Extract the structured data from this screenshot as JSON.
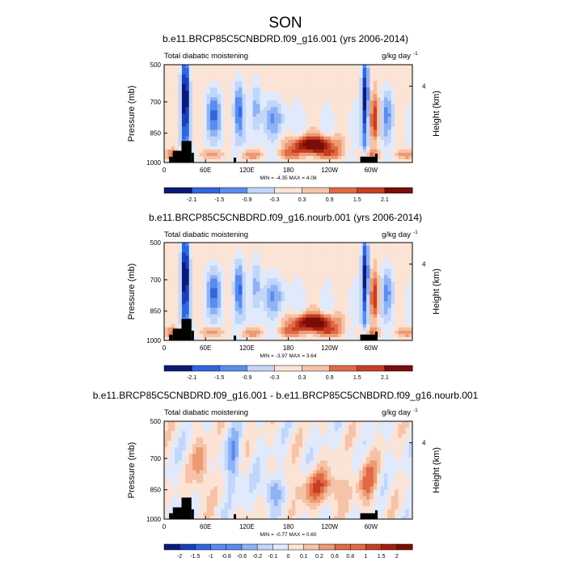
{
  "figure": {
    "season_title": "SON"
  },
  "chart_data": [
    {
      "type": "heatmap",
      "title": "b.e11.BRCP85C5CNBDRD.f09_g16.001 (yrs 2006-2014)",
      "left_label": "Total diabatic moistening",
      "units": "g/kg day",
      "units_exp": "-1",
      "ylabel": "Pressure (mb)",
      "y2label": "Height (km)",
      "yticks": [
        "500",
        "700",
        "850",
        "1000"
      ],
      "y2ticks": [
        "4"
      ],
      "xticks": [
        "0",
        "60E",
        "120E",
        "180",
        "120W",
        "60W"
      ],
      "min_max": "MIN = -4.35  MAX =  4.08",
      "colorbar_levels": [
        "-2.1",
        "-1.5",
        "-0.9",
        "-0.3",
        "0.3",
        "0.9",
        "1.5",
        "2.1"
      ],
      "palette": "diverging",
      "amp": 1.0
    },
    {
      "type": "heatmap",
      "title": "b.e11.BRCP85C5CNBDRD.f09_g16.nourb.001 (yrs 2006-2014)",
      "left_label": "Total diabatic moistening",
      "units": "g/kg day",
      "units_exp": "-1",
      "ylabel": "Pressure (mb)",
      "y2label": "Height (km)",
      "yticks": [
        "500",
        "700",
        "850",
        "1000"
      ],
      "y2ticks": [
        "4"
      ],
      "xticks": [
        "0",
        "60E",
        "120E",
        "180",
        "120W",
        "60W"
      ],
      "min_max": "MIN = -3.97  MAX =  3.64",
      "colorbar_levels": [
        "-2.1",
        "-1.5",
        "-0.9",
        "-0.3",
        "0.3",
        "0.9",
        "1.5",
        "2.1"
      ],
      "palette": "diverging",
      "amp": 1.0
    },
    {
      "type": "heatmap",
      "title": "b.e11.BRCP85C5CNBDRD.f09_g16.001 - b.e11.BRCP85C5CNBDRD.f09_g16.nourb.001",
      "left_label": "Total diabatic moistening",
      "units": "g/kg day",
      "units_exp": "-1",
      "ylabel": "Pressure (mb)",
      "y2label": "Height (km)",
      "yticks": [
        "500",
        "700",
        "850",
        "1000"
      ],
      "y2ticks": [
        "4"
      ],
      "xticks": [
        "0",
        "60E",
        "120E",
        "180",
        "120W",
        "60W"
      ],
      "min_max": "MIN = -0.77  MAX =  0.60",
      "colorbar_levels": [
        "-2",
        "-1.5",
        "-1",
        "-0.8",
        "-0.6",
        "-0.2",
        "-0.1",
        "0",
        "0.1",
        "0.2",
        "0.6",
        "0.8",
        "1",
        "1.5",
        "2"
      ],
      "palette": "diverging",
      "amp": 0.35
    }
  ],
  "colors": {
    "diverging": [
      "#0a1a7a",
      "#1b3fb8",
      "#2f66e0",
      "#5a8bf0",
      "#8fb2f5",
      "#c2d6fa",
      "#e0eafc",
      "#fbe3d6",
      "#f6c3a8",
      "#ee9a74",
      "#e06a45",
      "#c63f22",
      "#a0200f",
      "#7a0d08"
    ],
    "topography": "#000000"
  }
}
